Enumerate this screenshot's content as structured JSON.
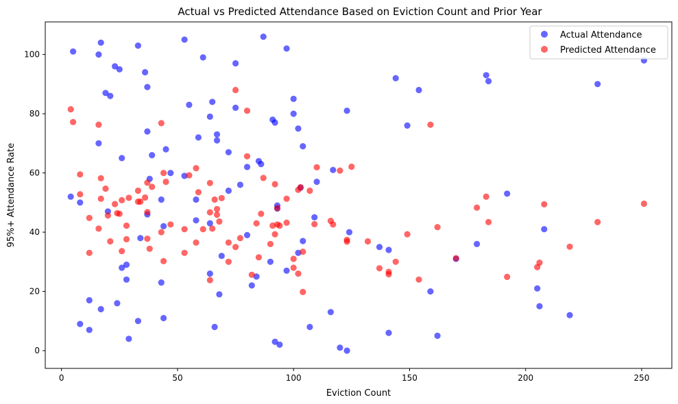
{
  "chart_data": {
    "type": "scatter",
    "title": "Actual vs Predicted Attendance Based on Eviction Count and Prior Year",
    "xlabel": "Eviction Count",
    "ylabel": "95%+ Attendance Rate",
    "xlim": [
      -7,
      263
    ],
    "ylim": [
      -6,
      111
    ],
    "xticks": [
      0,
      50,
      100,
      150,
      200,
      250
    ],
    "yticks": [
      0,
      20,
      40,
      60,
      80,
      100
    ],
    "grid": false,
    "legend_position": "top-right",
    "series": [
      {
        "name": "Actual Attendance",
        "color": "#0000ff",
        "points": [
          [
            4,
            52
          ],
          [
            5,
            101
          ],
          [
            8,
            50
          ],
          [
            8,
            9
          ],
          [
            12,
            17
          ],
          [
            12,
            7
          ],
          [
            16,
            100
          ],
          [
            16,
            70
          ],
          [
            17,
            104
          ],
          [
            17,
            14
          ],
          [
            19,
            87
          ],
          [
            20,
            47
          ],
          [
            21,
            86
          ],
          [
            23,
            96
          ],
          [
            24,
            16
          ],
          [
            25,
            95
          ],
          [
            26,
            65
          ],
          [
            26,
            28
          ],
          [
            28,
            29
          ],
          [
            28,
            24
          ],
          [
            29,
            4
          ],
          [
            33,
            103
          ],
          [
            33,
            10
          ],
          [
            34,
            38
          ],
          [
            36,
            94
          ],
          [
            37,
            89
          ],
          [
            37,
            74
          ],
          [
            37,
            46
          ],
          [
            38,
            58
          ],
          [
            39,
            66
          ],
          [
            43,
            51
          ],
          [
            43,
            23
          ],
          [
            44,
            42
          ],
          [
            44,
            11
          ],
          [
            45,
            68
          ],
          [
            47,
            60
          ],
          [
            53,
            105
          ],
          [
            53,
            59
          ],
          [
            55,
            83
          ],
          [
            58,
            51
          ],
          [
            58,
            44
          ],
          [
            59,
            72
          ],
          [
            61,
            99
          ],
          [
            64,
            79
          ],
          [
            64,
            43
          ],
          [
            64,
            26
          ],
          [
            65,
            84
          ],
          [
            66,
            8
          ],
          [
            67,
            73
          ],
          [
            67,
            71
          ],
          [
            68,
            19
          ],
          [
            69,
            32
          ],
          [
            72,
            67
          ],
          [
            72,
            54
          ],
          [
            75,
            97
          ],
          [
            75,
            82
          ],
          [
            77,
            56
          ],
          [
            80,
            62
          ],
          [
            80,
            39
          ],
          [
            82,
            22
          ],
          [
            84,
            25
          ],
          [
            85,
            64
          ],
          [
            86,
            63
          ],
          [
            87,
            106
          ],
          [
            90,
            30
          ],
          [
            91,
            78
          ],
          [
            92,
            77
          ],
          [
            92,
            3
          ],
          [
            93,
            49
          ],
          [
            93,
            48
          ],
          [
            94,
            2
          ],
          [
            97,
            102
          ],
          [
            97,
            27
          ],
          [
            100,
            85
          ],
          [
            100,
            80
          ],
          [
            102,
            75
          ],
          [
            102,
            33
          ],
          [
            103,
            55
          ],
          [
            104,
            69
          ],
          [
            104,
            37
          ],
          [
            107,
            8
          ],
          [
            109,
            45
          ],
          [
            110,
            57
          ],
          [
            116,
            13
          ],
          [
            117,
            61
          ],
          [
            120,
            1
          ],
          [
            123,
            81
          ],
          [
            123,
            0
          ],
          [
            124,
            40
          ],
          [
            137,
            35
          ],
          [
            141,
            34
          ],
          [
            141,
            6
          ],
          [
            144,
            92
          ],
          [
            149,
            76
          ],
          [
            154,
            88
          ],
          [
            159,
            20
          ],
          [
            162,
            5
          ],
          [
            170,
            31
          ],
          [
            179,
            36
          ],
          [
            183,
            93
          ],
          [
            184,
            91
          ],
          [
            192,
            53
          ],
          [
            205,
            21
          ],
          [
            206,
            15
          ],
          [
            208,
            41
          ],
          [
            219,
            12
          ],
          [
            231,
            90
          ],
          [
            251,
            98
          ]
        ]
      },
      {
        "name": "Predicted Attendance",
        "color": "#ff0000",
        "points": [
          [
            4,
            81.5
          ],
          [
            5,
            77.2
          ],
          [
            8,
            59.5
          ],
          [
            8,
            52.8
          ],
          [
            12,
            44.8
          ],
          [
            12,
            33
          ],
          [
            16,
            76.3
          ],
          [
            16,
            41.2
          ],
          [
            17,
            58.2
          ],
          [
            17,
            51.3
          ],
          [
            19,
            54.7
          ],
          [
            20,
            45.6
          ],
          [
            21,
            36.9
          ],
          [
            23,
            49.5
          ],
          [
            24,
            46.4
          ],
          [
            25,
            46.2
          ],
          [
            26,
            50.8
          ],
          [
            26,
            33.6
          ],
          [
            28,
            42.2
          ],
          [
            28,
            37.6
          ],
          [
            29,
            51.6
          ],
          [
            33,
            54
          ],
          [
            33,
            50.3
          ],
          [
            34,
            50.3
          ],
          [
            36,
            51.7
          ],
          [
            37,
            56.7
          ],
          [
            37,
            46.8
          ],
          [
            37,
            37.8
          ],
          [
            38,
            34.4
          ],
          [
            39,
            55.3
          ],
          [
            43,
            76.8
          ],
          [
            43,
            40
          ],
          [
            44,
            60
          ],
          [
            44,
            30.2
          ],
          [
            45,
            57
          ],
          [
            47,
            42.6
          ],
          [
            53,
            41
          ],
          [
            53,
            33
          ],
          [
            55,
            59.2
          ],
          [
            58,
            61.6
          ],
          [
            58,
            36.5
          ],
          [
            59,
            53.5
          ],
          [
            61,
            41
          ],
          [
            64,
            56.6
          ],
          [
            64,
            46.7
          ],
          [
            64,
            23.8
          ],
          [
            65,
            41.2
          ],
          [
            66,
            51
          ],
          [
            67,
            47.8
          ],
          [
            67,
            45.9
          ],
          [
            68,
            43.6
          ],
          [
            69,
            51.5
          ],
          [
            72,
            36.5
          ],
          [
            72,
            30
          ],
          [
            75,
            88
          ],
          [
            75,
            35
          ],
          [
            77,
            38
          ],
          [
            80,
            81
          ],
          [
            80,
            65.6
          ],
          [
            82,
            25.6
          ],
          [
            84,
            43
          ],
          [
            85,
            31.5
          ],
          [
            86,
            46.2
          ],
          [
            87,
            58.3
          ],
          [
            90,
            36
          ],
          [
            91,
            42.2
          ],
          [
            92,
            56.2
          ],
          [
            92,
            39.3
          ],
          [
            93,
            48.1
          ],
          [
            93,
            42.6
          ],
          [
            94,
            42.2
          ],
          [
            97,
            51.3
          ],
          [
            97,
            43.2
          ],
          [
            100,
            31
          ],
          [
            100,
            28
          ],
          [
            102,
            26
          ],
          [
            102,
            54.3
          ],
          [
            103,
            55.2
          ],
          [
            104,
            33.4
          ],
          [
            104,
            19.8
          ],
          [
            107,
            54
          ],
          [
            109,
            42.7
          ],
          [
            110,
            61.9
          ],
          [
            116,
            43.8
          ],
          [
            117,
            42.6
          ],
          [
            120,
            60.8
          ],
          [
            123,
            36.8
          ],
          [
            123,
            37.4
          ],
          [
            125,
            62.1
          ],
          [
            132,
            36.9
          ],
          [
            137,
            27.8
          ],
          [
            141,
            26.6
          ],
          [
            141,
            25.8
          ],
          [
            144,
            30
          ],
          [
            149,
            39.3
          ],
          [
            154,
            24
          ],
          [
            159,
            76.3
          ],
          [
            162,
            41.7
          ],
          [
            170,
            31.2
          ],
          [
            179,
            48.3
          ],
          [
            183,
            52
          ],
          [
            184,
            43.4
          ],
          [
            192,
            24.9
          ],
          [
            205,
            28.2
          ],
          [
            206,
            29.7
          ],
          [
            208,
            49.4
          ],
          [
            219,
            35.1
          ],
          [
            231,
            43.4
          ],
          [
            251,
            49.6
          ]
        ]
      }
    ]
  }
}
